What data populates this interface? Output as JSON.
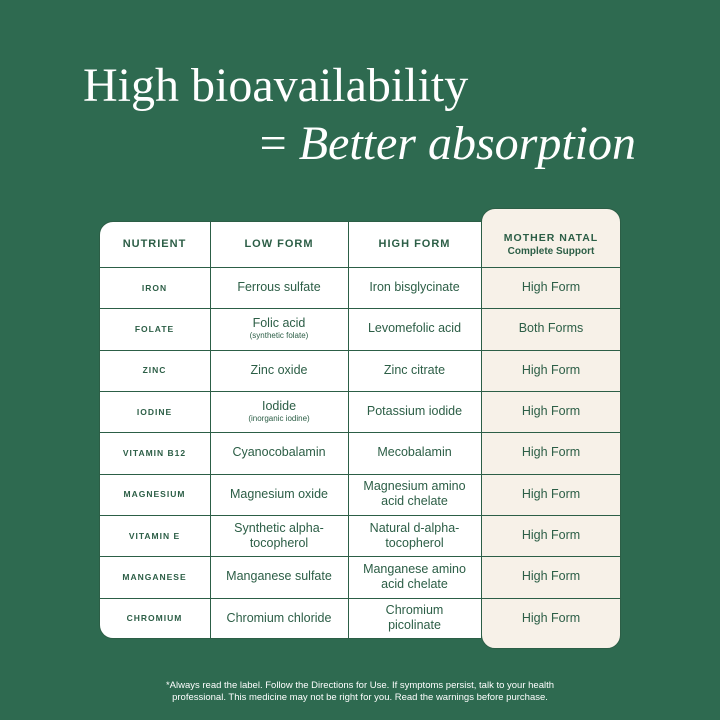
{
  "title": {
    "line1": "High bioavailability",
    "line2_prefix": "=",
    "line2_italic": "Better absorption"
  },
  "table": {
    "headers": [
      "NUTRIENT",
      "LOW FORM",
      "HIGH FORM"
    ],
    "product_header": {
      "name": "MOTHER NATAL",
      "subtitle": "Complete Support"
    },
    "rows": [
      {
        "nutrient": "IRON",
        "low": "Ferrous sulfate",
        "high": "Iron bisglycinate",
        "product": "High Form"
      },
      {
        "nutrient": "FOLATE",
        "low": "Folic acid",
        "low_note": "(synthetic folate)",
        "high": "Levomefolic acid",
        "product": "Both Forms"
      },
      {
        "nutrient": "ZINC",
        "low": "Zinc oxide",
        "high": "Zinc citrate",
        "product": "High Form"
      },
      {
        "nutrient": "IODINE",
        "low": "Iodide",
        "low_note": "(inorganic iodine)",
        "high": "Potassium iodide",
        "product": "High Form"
      },
      {
        "nutrient": "VITAMIN B12",
        "low": "Cyanocobalamin",
        "high": "Mecobalamin",
        "product": "High Form"
      },
      {
        "nutrient": "MAGNESIUM",
        "low": "Magnesium oxide",
        "high": "Magnesium amino acid chelate",
        "product": "High Form"
      },
      {
        "nutrient": "VITAMIN E",
        "low": "Synthetic alpha-tocopherol",
        "high": "Natural d-alpha-tocopherol",
        "product": "High Form"
      },
      {
        "nutrient": "MANGANESE",
        "low": "Manganese sulfate",
        "high": "Manganese amino acid chelate",
        "product": "High Form"
      },
      {
        "nutrient": "CHROMIUM",
        "low": "Chromium chloride",
        "high": "Chromium picolinate",
        "product": "High Form"
      }
    ]
  },
  "footnote": {
    "line1": "*Always read the label. Follow the Directions for Use. If symptoms persist, talk to your health",
    "line2": "professional. This medicine may not be right for you. Read the warnings before purchase."
  }
}
